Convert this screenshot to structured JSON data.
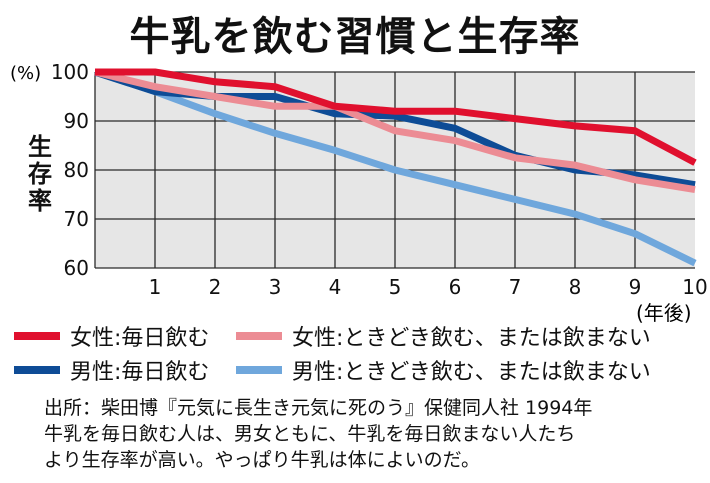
{
  "chart_data": {
    "type": "line",
    "title": "牛乳を飲む習慣と生存率",
    "ylabel": "生存率",
    "y_unit": "(%)",
    "x_unit": "(年後)",
    "x": [
      0,
      1,
      2,
      3,
      4,
      5,
      6,
      7,
      8,
      9,
      10
    ],
    "x_tick_labels": [
      "1",
      "2",
      "3",
      "4",
      "5",
      "6",
      "7",
      "8",
      "9",
      "10"
    ],
    "y_ticks": [
      60,
      70,
      80,
      90,
      100
    ],
    "xlim": [
      0,
      10
    ],
    "ylim": [
      60,
      100
    ],
    "grid": true,
    "series": [
      {
        "name": "女性:毎日飲む",
        "color": "#e0102e",
        "values": [
          100,
          100,
          98,
          97,
          93,
          92,
          92,
          90.5,
          89,
          88,
          81.5
        ]
      },
      {
        "name": "女性:ときどき飲む、または飲まない",
        "color": "#ec8c94",
        "values": [
          100,
          97,
          95,
          93,
          93,
          88,
          86,
          82.5,
          81,
          78,
          76
        ]
      },
      {
        "name": "男性:毎日飲む",
        "color": "#0e4c96",
        "values": [
          100,
          96,
          95,
          95,
          91.5,
          91,
          88.5,
          83,
          80,
          79,
          77
        ]
      },
      {
        "name": "男性:ときどき飲む、または飲まない",
        "color": "#6fa7dc",
        "values": [
          100,
          96,
          91.5,
          87.5,
          84,
          80,
          77,
          74,
          71,
          67,
          61
        ]
      }
    ]
  },
  "source": {
    "line1": "出所：柴田博『元気に長生き元気に死のう』保健同人社 1994年",
    "line2": "牛乳を毎日飲む人は、男女ともに、牛乳を毎日飲まない人たち",
    "line3": "より生存率が高い。やっぱり牛乳は体によいのだ。"
  }
}
